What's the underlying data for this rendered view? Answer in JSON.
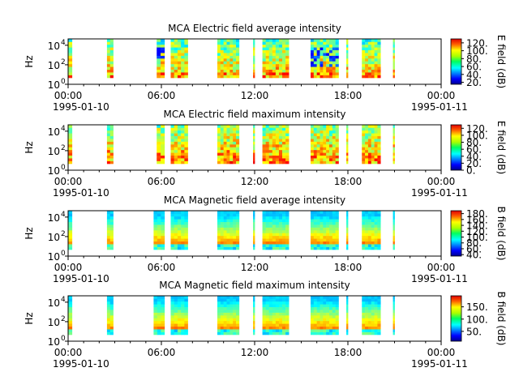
{
  "chart_data": [
    {
      "type": "heatmap",
      "title": "MCA  Electric field average intensity",
      "ylabel": "Hz",
      "y_ticks": [
        "10",
        "10",
        "10"
      ],
      "y_tick_exponents": [
        "0",
        "2",
        "4"
      ],
      "y_scale": "log",
      "x_ticks": [
        "00:00",
        "06:00",
        "12:00",
        "18:00",
        "00:00"
      ],
      "x_dates": [
        "1995-01-10",
        "1995-01-11"
      ],
      "x_range": [
        "1995-01-10 00:00",
        "1995-01-11 00:00"
      ],
      "colorbar_label": "E field (dB)",
      "colorbar_ticks": [
        "20.",
        "40.",
        "60.",
        "80.",
        "100.",
        "120."
      ],
      "colorbar_range": [
        15,
        130
      ],
      "data_intervals_hours": [
        [
          0.0,
          0.25
        ],
        [
          2.5,
          2.9
        ],
        [
          5.7,
          6.2
        ],
        [
          6.6,
          7.7
        ],
        [
          9.6,
          11.0
        ],
        [
          11.9,
          12.0
        ],
        [
          12.5,
          14.2
        ],
        [
          15.6,
          17.4
        ],
        [
          17.9,
          18.0
        ],
        [
          18.9,
          20.1
        ],
        [
          20.9,
          21.0
        ]
      ],
      "intensity_range_db": [
        20,
        120
      ]
    },
    {
      "type": "heatmap",
      "title": "MCA  Electric field maximum intensity",
      "ylabel": "Hz",
      "y_ticks": [
        "10",
        "10",
        "10"
      ],
      "y_tick_exponents": [
        "0",
        "2",
        "4"
      ],
      "y_scale": "log",
      "x_ticks": [
        "00:00",
        "06:00",
        "12:00",
        "18:00",
        "00:00"
      ],
      "x_dates": [
        "1995-01-10",
        "1995-01-11"
      ],
      "x_range": [
        "1995-01-10 00:00",
        "1995-01-11 00:00"
      ],
      "colorbar_label": "E field (dB)",
      "colorbar_ticks": [
        "0.",
        "20.",
        "40.",
        "60.",
        "80.",
        "100.",
        "120."
      ],
      "colorbar_range": [
        0,
        130
      ],
      "data_intervals_hours": [
        [
          0.0,
          0.25
        ],
        [
          2.5,
          2.9
        ],
        [
          5.7,
          6.2
        ],
        [
          6.6,
          7.7
        ],
        [
          9.6,
          11.0
        ],
        [
          11.9,
          12.0
        ],
        [
          12.5,
          14.2
        ],
        [
          15.6,
          17.4
        ],
        [
          17.9,
          18.0
        ],
        [
          18.9,
          20.1
        ],
        [
          20.9,
          21.0
        ]
      ],
      "intensity_range_db": [
        40,
        120
      ]
    },
    {
      "type": "heatmap",
      "title": "MCA  Magnetic field average intensity",
      "ylabel": "Hz",
      "y_ticks": [
        "10",
        "10",
        "10"
      ],
      "y_tick_exponents": [
        "0",
        "2",
        "4"
      ],
      "y_scale": "log",
      "x_ticks": [
        "00:00",
        "06:00",
        "12:00",
        "18:00",
        "00:00"
      ],
      "x_dates": [
        "1995-01-10",
        "1995-01-11"
      ],
      "x_range": [
        "1995-01-10 00:00",
        "1995-01-11 00:00"
      ],
      "colorbar_label": "B field (dB)",
      "colorbar_ticks": [
        "40.",
        "60.",
        "80.",
        "100.",
        "120.",
        "140.",
        "160.",
        "180."
      ],
      "colorbar_range": [
        35,
        190
      ],
      "data_intervals_hours": [
        [
          0.0,
          0.25
        ],
        [
          2.5,
          2.9
        ],
        [
          5.5,
          6.2
        ],
        [
          6.6,
          7.7
        ],
        [
          9.6,
          11.0
        ],
        [
          11.9,
          12.0
        ],
        [
          12.5,
          14.2
        ],
        [
          15.6,
          17.4
        ],
        [
          17.9,
          18.0
        ],
        [
          18.9,
          20.1
        ],
        [
          20.9,
          21.0
        ]
      ],
      "intensity_range_db": [
        60,
        180
      ]
    },
    {
      "type": "heatmap",
      "title": "MCA  Magnetic field maximum intensity",
      "ylabel": "Hz",
      "y_ticks": [
        "10",
        "10",
        "10"
      ],
      "y_tick_exponents": [
        "0",
        "2",
        "4"
      ],
      "y_scale": "log",
      "x_ticks": [
        "00:00",
        "06:00",
        "12:00",
        "18:00",
        "00:00"
      ],
      "x_dates": [
        "1995-01-10",
        "1995-01-11"
      ],
      "x_range": [
        "1995-01-10 00:00",
        "1995-01-11 00:00"
      ],
      "colorbar_label": "B field (dB)",
      "colorbar_ticks": [
        "50.",
        "100.",
        "150."
      ],
      "colorbar_range": [
        10,
        195
      ],
      "data_intervals_hours": [
        [
          0.0,
          0.25
        ],
        [
          2.5,
          2.9
        ],
        [
          5.5,
          6.2
        ],
        [
          6.6,
          7.7
        ],
        [
          9.6,
          11.0
        ],
        [
          11.9,
          12.0
        ],
        [
          12.5,
          14.2
        ],
        [
          15.6,
          17.4
        ],
        [
          17.9,
          18.0
        ],
        [
          18.9,
          20.1
        ],
        [
          20.9,
          21.0
        ]
      ],
      "intensity_range_db": [
        60,
        180
      ]
    }
  ]
}
